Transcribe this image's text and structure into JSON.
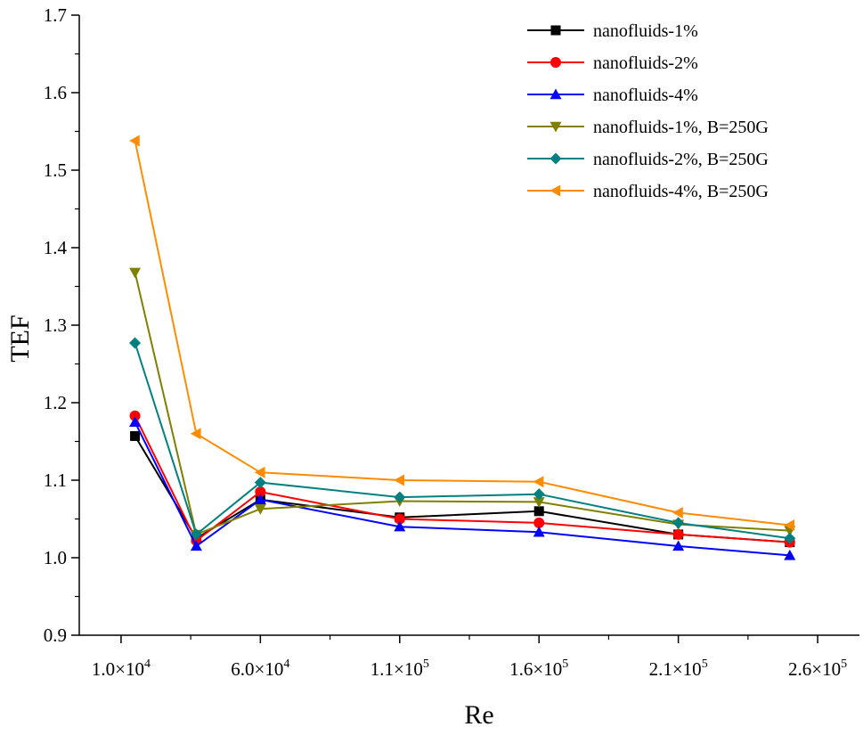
{
  "chart_data": {
    "type": "line",
    "title": "",
    "xlabel": "Re",
    "ylabel": "TEF",
    "xlim": [
      -5000,
      275000
    ],
    "ylim": [
      0.9,
      1.7
    ],
    "x_ticks": [
      10000,
      60000,
      110000,
      160000,
      210000,
      260000
    ],
    "x_tick_labels": [
      {
        "mant": "1.0×10",
        "exp": "4"
      },
      {
        "mant": "6.0×10",
        "exp": "4"
      },
      {
        "mant": "1.1×10",
        "exp": "5"
      },
      {
        "mant": "1.6×10",
        "exp": "5"
      },
      {
        "mant": "2.1×10",
        "exp": "5"
      },
      {
        "mant": "2.6×10",
        "exp": "5"
      }
    ],
    "y_ticks": [
      0.9,
      1.0,
      1.1,
      1.2,
      1.3,
      1.4,
      1.5,
      1.6,
      1.7
    ],
    "y_tick_labels": [
      "0.9",
      "1.0",
      "1.1",
      "1.2",
      "1.3",
      "1.4",
      "1.5",
      "1.6",
      "1.7"
    ],
    "legend_position": "top-right",
    "x": [
      15000,
      37000,
      60000,
      110000,
      160000,
      210000,
      250000
    ],
    "series": [
      {
        "name": "nanofluids-1%",
        "color": "#000000",
        "marker": "square",
        "values": [
          1.157,
          1.025,
          1.075,
          1.052,
          1.06,
          1.03,
          1.02
        ]
      },
      {
        "name": "nanofluids-2%",
        "color": "#ff0000",
        "marker": "circle",
        "values": [
          1.183,
          1.022,
          1.085,
          1.05,
          1.045,
          1.03,
          1.02
        ]
      },
      {
        "name": "nanofluids-4%",
        "color": "#0000ff",
        "marker": "triangle-up",
        "values": [
          1.175,
          1.015,
          1.075,
          1.04,
          1.033,
          1.015,
          1.003
        ]
      },
      {
        "name": "nanofluids-1%, B=250G",
        "color": "#808000",
        "marker": "triangle-down",
        "values": [
          1.368,
          1.03,
          1.063,
          1.073,
          1.072,
          1.043,
          1.035
        ]
      },
      {
        "name": "nanofluids-2%, B=250G",
        "color": "#008080",
        "marker": "diamond",
        "values": [
          1.277,
          1.03,
          1.097,
          1.078,
          1.082,
          1.045,
          1.025
        ]
      },
      {
        "name": "nanofluids-4%, B=250G",
        "color": "#ff8c00",
        "marker": "triangle-left",
        "values": [
          1.538,
          1.16,
          1.11,
          1.1,
          1.098,
          1.058,
          1.042
        ]
      }
    ]
  }
}
